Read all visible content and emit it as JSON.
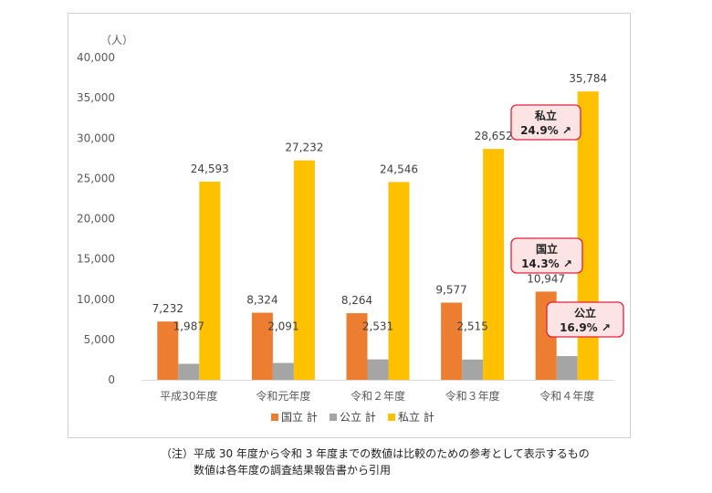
{
  "chart_data": {
    "type": "bar",
    "unit_label": "（人）",
    "categories": [
      "平成30年度",
      "令和元年度",
      "令和２年度",
      "令和３年度",
      "令和４年度"
    ],
    "series": [
      {
        "name": "国立 計",
        "color": "#ED7D31",
        "values": [
          7232,
          8324,
          8264,
          9577,
          10947
        ],
        "labels": [
          "7,232",
          "8,324",
          "8,264",
          "9,577",
          "10,947"
        ]
      },
      {
        "name": "公立 計",
        "color": "#A5A5A5",
        "values": [
          1987,
          2091,
          2531,
          2515,
          2941
        ],
        "labels": [
          "1,987",
          "2,091",
          "2,531",
          "2,515",
          "2,941"
        ]
      },
      {
        "name": "私立 計",
        "color": "#FFC000",
        "values": [
          24593,
          27232,
          24546,
          28652,
          35784
        ],
        "labels": [
          "24,593",
          "27,232",
          "24,546",
          "28,652",
          "35,784"
        ]
      }
    ],
    "ylim": [
      0,
      40000
    ],
    "yticks": [
      0,
      5000,
      10000,
      15000,
      20000,
      25000,
      30000,
      35000,
      40000
    ],
    "ytick_labels": [
      "0",
      "5,000",
      "10,000",
      "15,000",
      "20,000",
      "25,000",
      "30,000",
      "35,000",
      "40,000"
    ],
    "grid": false,
    "legend": "bottom",
    "annotations": [
      {
        "title": "私立",
        "value": "24.9% ↗",
        "series": 2
      },
      {
        "title": "国立",
        "value": "14.3% ↗",
        "series": 0
      },
      {
        "title": "公立",
        "value": "16.9% ↗",
        "series": 1
      }
    ],
    "callout_style": {
      "fill": "#FCE4E4",
      "stroke": "#E0203A"
    }
  },
  "note": {
    "line1": "（注）平成 30 年度から令和 3 年度までの数値は比較のための参考として表示するもの",
    "line2": "数値は各年度の調査結果報告書から引用"
  }
}
